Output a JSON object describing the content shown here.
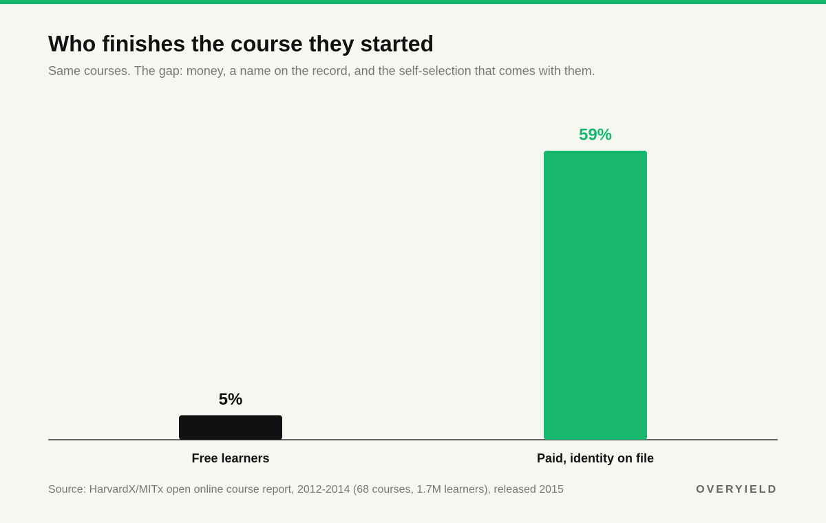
{
  "chart_data": {
    "type": "bar",
    "title": "Who finishes the course they started",
    "subtitle": "Same courses. The gap: money, a name on the record, and the self-selection that comes with them.",
    "categories": [
      "Free learners",
      "Paid, identity on file"
    ],
    "values": [
      5,
      59
    ],
    "value_labels": [
      "5%",
      "59%"
    ],
    "colors": [
      "#111111",
      "#17b86d"
    ],
    "source": "Source: HarvardX/MITx open online course report, 2012-2014 (68 courses, 1.7M learners), released 2015"
  },
  "brand": "OVERYIELD"
}
